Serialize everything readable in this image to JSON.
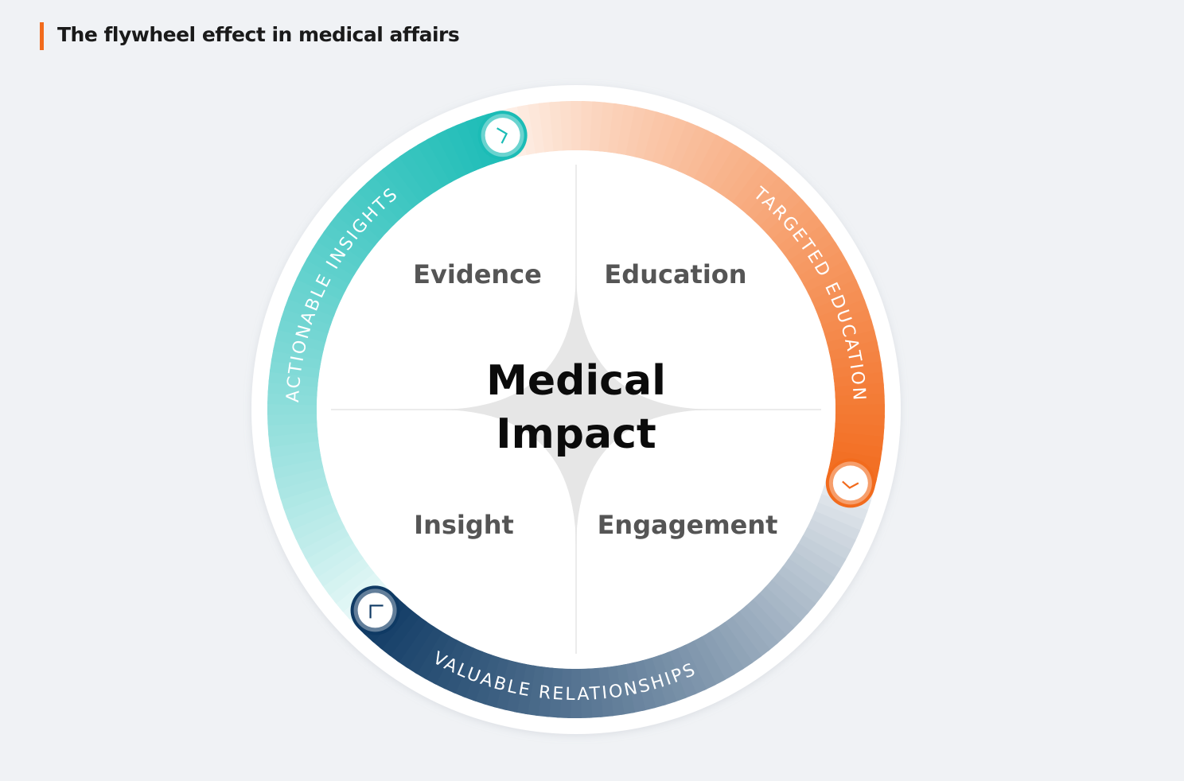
{
  "header": {
    "title": "The flywheel effect in medical affairs"
  },
  "diagram": {
    "center": {
      "line1": "Medical",
      "line2": "Impact"
    },
    "quadrants": [
      {
        "label": "Evidence"
      },
      {
        "label": "Education"
      },
      {
        "label": "Insight"
      },
      {
        "label": "Engagement"
      }
    ],
    "ring_segments": [
      {
        "label": "ACTIONABLE INSIGHTS",
        "color": "#1bbcb6",
        "icon": "chevron-right-icon"
      },
      {
        "label": "TARGETED EDUCATION",
        "color": "#f26b1d",
        "icon": "chevron-down-icon"
      },
      {
        "label": "VALUABLE RELATIONSHIPS",
        "color": "#0f3a64",
        "icon": "corner-icon"
      }
    ]
  },
  "colors": {
    "background": "#f0f2f5",
    "accent": "#f26b1d",
    "star": "#e6e6e6"
  }
}
